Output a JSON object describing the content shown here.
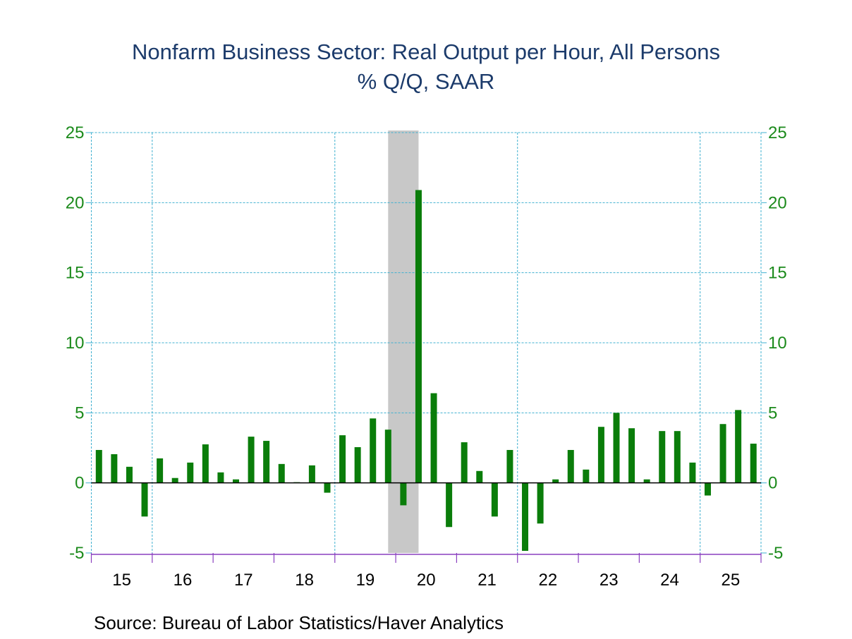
{
  "chart_data": {
    "type": "bar",
    "title": "Nonfarm Business Sector: Real Output per Hour, All Persons",
    "subtitle": "% Q/Q, SAAR",
    "source": "Source:  Bureau of Labor Statistics/Haver Analytics",
    "frequency": "quarterly",
    "x_tick_labels": [
      "15",
      "16",
      "17",
      "18",
      "19",
      "20",
      "21",
      "22",
      "23",
      "24",
      "25"
    ],
    "y_ticks": [
      -5,
      0,
      5,
      10,
      15,
      20,
      25
    ],
    "ylim": [
      -5,
      25
    ],
    "dual_y_axis": true,
    "grid": true,
    "shaded_period": {
      "start": "2019-Q4",
      "end": "2020-Q2"
    },
    "colors": {
      "bar": "#0a7d0a",
      "tick": "#1b8a1b",
      "title": "#1c3b6b",
      "grid": "#3fb0d0",
      "axis": "#8a3fbf",
      "shade": "#c8c8c8"
    },
    "categories": [
      "2015Q1",
      "2015Q2",
      "2015Q3",
      "2015Q4",
      "2016Q1",
      "2016Q2",
      "2016Q3",
      "2016Q4",
      "2017Q1",
      "2017Q2",
      "2017Q3",
      "2017Q4",
      "2018Q1",
      "2018Q2",
      "2018Q3",
      "2018Q4",
      "2019Q1",
      "2019Q2",
      "2019Q3",
      "2019Q4",
      "2020Q1",
      "2020Q2",
      "2020Q3",
      "2020Q4",
      "2021Q1",
      "2021Q2",
      "2021Q3",
      "2021Q4",
      "2022Q1",
      "2022Q2",
      "2022Q3",
      "2022Q4",
      "2023Q1",
      "2023Q2",
      "2023Q3",
      "2023Q4",
      "2024Q1",
      "2024Q2",
      "2024Q3",
      "2024Q4",
      "2025Q1",
      "2025Q2",
      "2025Q3",
      "2025Q4"
    ],
    "values": [
      2.35,
      2.05,
      1.15,
      -2.4,
      1.75,
      0.35,
      1.45,
      2.75,
      0.75,
      0.25,
      3.3,
      3.0,
      1.35,
      0.05,
      1.25,
      -0.7,
      3.4,
      2.55,
      4.6,
      3.8,
      -1.6,
      20.9,
      6.4,
      -3.15,
      2.9,
      0.85,
      -2.4,
      2.35,
      -4.85,
      -2.9,
      0.25,
      2.35,
      0.95,
      4.0,
      5.0,
      3.9,
      0.25,
      3.7,
      3.7,
      1.45,
      -0.9,
      4.2,
      5.2,
      2.8
    ]
  }
}
